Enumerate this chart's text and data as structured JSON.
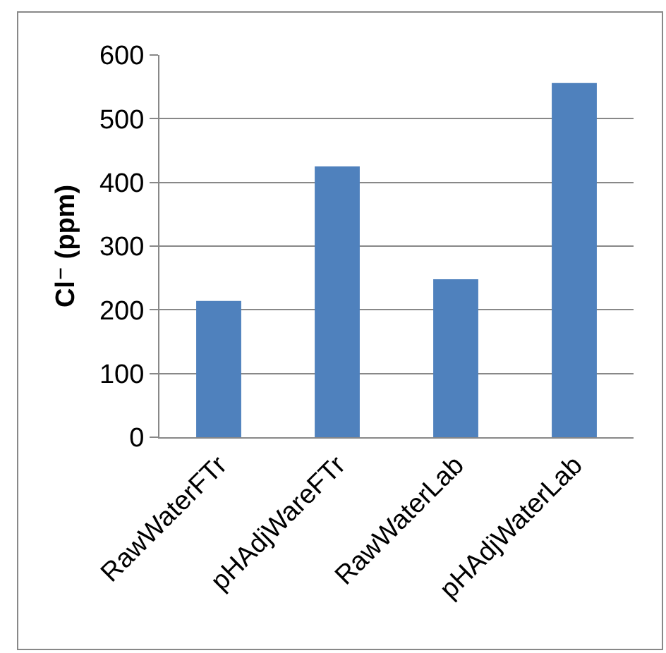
{
  "chart_data": {
    "type": "bar",
    "ylabel": "Cl⁻ (ppm)",
    "categories": [
      "RawWaterFTr",
      "pHAdjWareFTr",
      "RawWaterLab",
      "pHAdjWaterLab"
    ],
    "values": [
      214,
      425,
      248,
      556
    ],
    "color": "#4f81bd",
    "ylim": [
      0,
      600
    ],
    "yticks": [
      0,
      100,
      200,
      300,
      400,
      500,
      600
    ],
    "grid": "y",
    "legend": false
  }
}
